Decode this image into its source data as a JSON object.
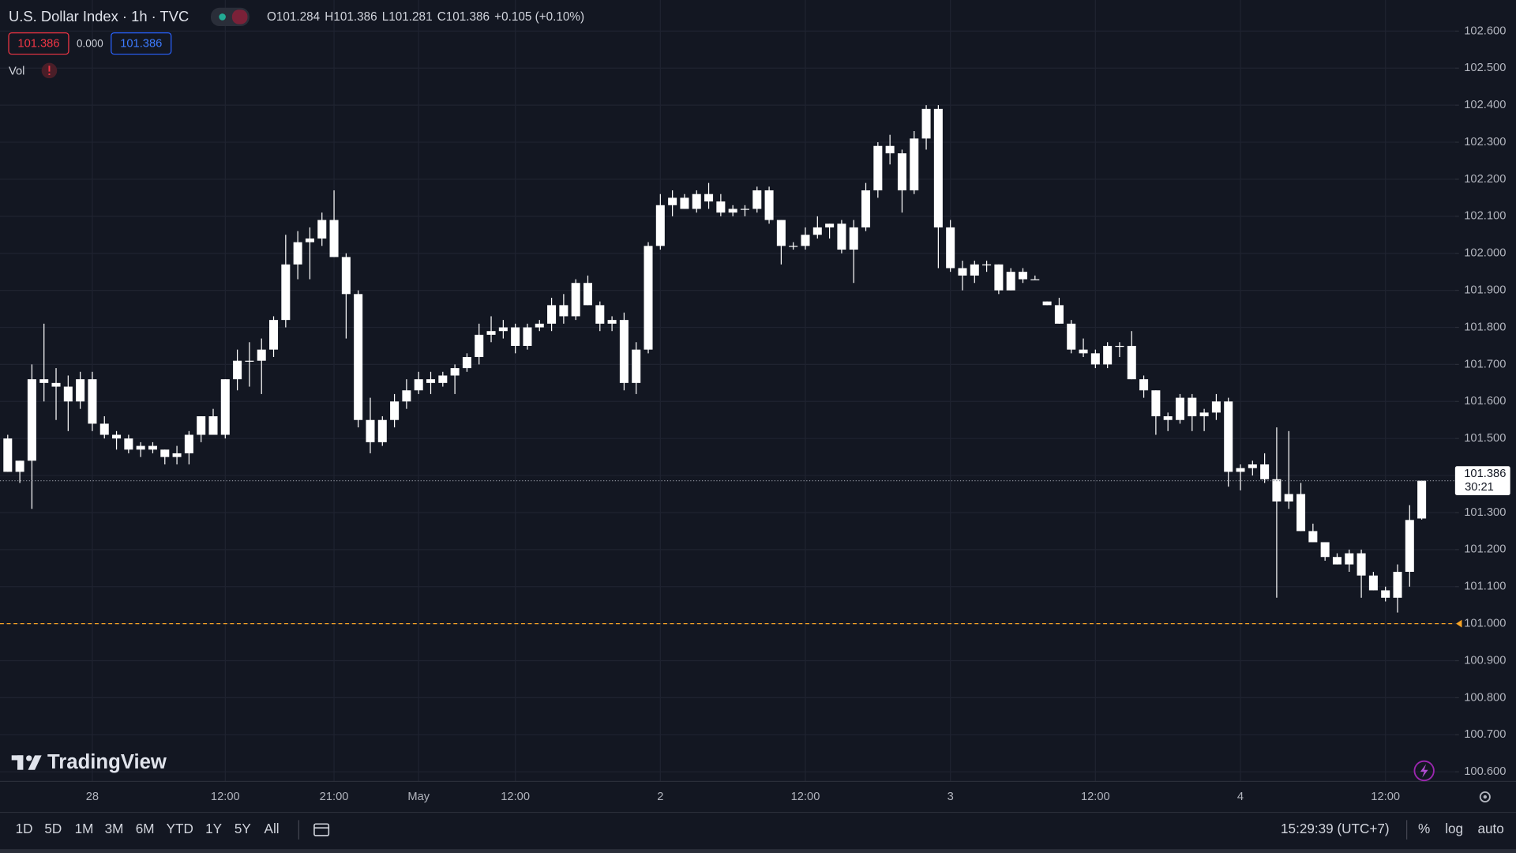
{
  "chart_data": {
    "type": "candlestick",
    "categories": [
      null,
      null,
      null,
      null,
      null,
      null,
      null,
      "28",
      null,
      null,
      null,
      null,
      null,
      null,
      null,
      null,
      null,
      null,
      "12:00",
      null,
      null,
      null,
      null,
      null,
      null,
      null,
      null,
      "21:00",
      null,
      null,
      null,
      null,
      null,
      null,
      "May",
      null,
      null,
      null,
      null,
      null,
      null,
      null,
      "12:00",
      null,
      null,
      null,
      null,
      null,
      null,
      null,
      null,
      null,
      null,
      null,
      "2",
      null,
      null,
      null,
      null,
      null,
      null,
      null,
      null,
      null,
      null,
      null,
      "12:00",
      null,
      null,
      null,
      null,
      null,
      null,
      null,
      null,
      null,
      null,
      null,
      "3",
      null,
      null,
      null,
      null,
      null,
      null,
      null,
      null,
      null,
      null,
      null,
      "12:00",
      null,
      null,
      null,
      null,
      null,
      null,
      null,
      null,
      null,
      null,
      null,
      "4",
      null,
      null,
      null,
      null,
      null,
      null,
      null,
      null,
      null,
      null,
      null,
      "12:00",
      null,
      null,
      null
    ],
    "open": [
      101.5,
      101.41,
      101.44,
      101.66,
      101.65,
      101.64,
      101.6,
      101.66,
      101.54,
      101.51,
      101.5,
      101.47,
      101.48,
      101.47,
      101.45,
      101.46,
      101.51,
      101.56,
      101.51,
      101.66,
      101.71,
      101.71,
      101.74,
      101.82,
      101.97,
      102.03,
      102.04,
      102.09,
      101.99,
      101.89,
      101.55,
      101.49,
      101.55,
      101.6,
      101.63,
      101.66,
      101.65,
      101.67,
      101.69,
      101.72,
      101.78,
      101.79,
      101.8,
      101.75,
      101.8,
      101.81,
      101.86,
      101.83,
      101.92,
      101.86,
      101.81,
      101.82,
      101.65,
      101.74,
      102.02,
      102.13,
      102.15,
      102.12,
      102.16,
      102.14,
      102.11,
      102.12,
      102.12,
      102.17,
      102.09,
      102.02,
      102.02,
      102.05,
      102.07,
      102.08,
      102.01,
      102.07,
      102.17,
      102.29,
      102.27,
      102.17,
      102.31,
      102.39,
      102.07,
      101.96,
      101.94,
      101.97,
      101.97,
      101.9,
      101.95,
      101.93,
      101.87,
      101.86,
      101.81,
      101.74,
      101.73,
      101.7,
      101.75,
      101.75,
      101.66,
      101.63,
      101.56,
      101.55,
      101.61,
      101.56,
      101.57,
      101.6,
      101.41,
      101.42,
      101.43,
      101.39,
      101.33,
      101.35,
      101.25,
      101.22,
      101.18,
      101.16,
      101.19,
      101.13,
      101.09,
      101.07,
      101.14,
      101.284
    ],
    "high": [
      101.51,
      101.44,
      101.7,
      101.81,
      101.69,
      101.67,
      101.68,
      101.68,
      101.56,
      101.52,
      101.51,
      101.49,
      101.49,
      101.47,
      101.48,
      101.52,
      101.56,
      101.58,
      101.66,
      101.74,
      101.76,
      101.77,
      101.83,
      102.05,
      102.06,
      102.07,
      102.11,
      102.17,
      102.0,
      101.9,
      101.61,
      101.56,
      101.62,
      101.66,
      101.68,
      101.68,
      101.68,
      101.7,
      101.73,
      101.81,
      101.83,
      101.82,
      101.81,
      101.81,
      101.82,
      101.88,
      101.89,
      101.93,
      101.94,
      101.87,
      101.83,
      101.84,
      101.76,
      102.03,
      102.16,
      102.17,
      102.16,
      102.17,
      102.19,
      102.16,
      102.13,
      102.13,
      102.18,
      102.18,
      102.09,
      102.03,
      102.07,
      102.1,
      102.08,
      102.09,
      102.09,
      102.19,
      102.3,
      102.32,
      102.28,
      102.33,
      102.4,
      102.4,
      102.09,
      101.98,
      101.98,
      101.98,
      101.97,
      101.96,
      101.96,
      101.94,
      101.87,
      101.88,
      101.82,
      101.77,
      101.74,
      101.76,
      101.76,
      101.79,
      101.67,
      101.63,
      101.57,
      101.62,
      101.62,
      101.58,
      101.62,
      101.61,
      101.43,
      101.44,
      101.46,
      101.53,
      101.52,
      101.38,
      101.27,
      101.22,
      101.19,
      101.2,
      101.2,
      101.14,
      101.1,
      101.16,
      101.32,
      101.386
    ],
    "low": [
      101.41,
      101.38,
      101.31,
      101.6,
      101.55,
      101.52,
      101.58,
      101.52,
      101.5,
      101.47,
      101.46,
      101.45,
      101.46,
      101.43,
      101.43,
      101.43,
      101.49,
      101.51,
      101.5,
      101.63,
      101.64,
      101.62,
      101.72,
      101.8,
      101.93,
      101.93,
      102.02,
      101.99,
      101.77,
      101.53,
      101.46,
      101.48,
      101.53,
      101.58,
      101.62,
      101.62,
      101.64,
      101.62,
      101.68,
      101.7,
      101.76,
      101.77,
      101.73,
      101.74,
      101.79,
      101.79,
      101.81,
      101.82,
      101.86,
      101.79,
      101.79,
      101.63,
      101.62,
      101.73,
      102.01,
      102.1,
      102.12,
      102.11,
      102.12,
      102.1,
      102.1,
      102.1,
      102.11,
      102.08,
      101.97,
      102.01,
      102.01,
      102.04,
      102.04,
      102.0,
      101.92,
      102.06,
      102.15,
      102.24,
      102.11,
      102.16,
      102.28,
      101.96,
      101.95,
      101.9,
      101.92,
      101.95,
      101.89,
      101.9,
      101.92,
      101.93,
      101.86,
      101.81,
      101.73,
      101.72,
      101.69,
      101.69,
      101.72,
      101.66,
      101.61,
      101.51,
      101.52,
      101.54,
      101.52,
      101.52,
      101.55,
      101.37,
      101.36,
      101.4,
      101.38,
      101.07,
      101.31,
      101.25,
      101.22,
      101.17,
      101.16,
      101.14,
      101.07,
      101.09,
      101.06,
      101.03,
      101.1,
      101.281
    ],
    "close": [
      101.41,
      101.44,
      101.66,
      101.65,
      101.64,
      101.6,
      101.66,
      101.54,
      101.51,
      101.5,
      101.47,
      101.48,
      101.47,
      101.45,
      101.46,
      101.51,
      101.56,
      101.51,
      101.66,
      101.71,
      101.71,
      101.74,
      101.82,
      101.97,
      102.03,
      102.04,
      102.09,
      101.99,
      101.89,
      101.55,
      101.49,
      101.55,
      101.6,
      101.63,
      101.66,
      101.65,
      101.67,
      101.69,
      101.72,
      101.78,
      101.79,
      101.8,
      101.75,
      101.8,
      101.81,
      101.86,
      101.83,
      101.92,
      101.86,
      101.81,
      101.82,
      101.65,
      101.74,
      102.02,
      102.13,
      102.15,
      102.12,
      102.16,
      102.14,
      102.11,
      102.12,
      102.12,
      102.17,
      102.09,
      102.02,
      102.02,
      102.05,
      102.07,
      102.08,
      102.01,
      102.07,
      102.17,
      102.29,
      102.27,
      102.17,
      102.31,
      102.39,
      102.07,
      101.96,
      101.94,
      101.97,
      101.97,
      101.9,
      101.95,
      101.93,
      101.93,
      101.86,
      101.81,
      101.74,
      101.73,
      101.7,
      101.75,
      101.75,
      101.66,
      101.63,
      101.56,
      101.55,
      101.61,
      101.56,
      101.57,
      101.6,
      101.41,
      101.42,
      101.43,
      101.39,
      101.33,
      101.35,
      101.25,
      101.22,
      101.18,
      101.16,
      101.19,
      101.13,
      101.09,
      101.07,
      101.14,
      101.28,
      101.386
    ],
    "color": "#ffffff",
    "ylim": [
      100.574,
      102.684
    ],
    "yticks": [
      {
        "value": 100.6,
        "label": "100.600"
      },
      {
        "value": 100.7,
        "label": "100.700"
      },
      {
        "value": 100.8,
        "label": "100.800"
      },
      {
        "value": 100.9,
        "label": "100.900"
      },
      {
        "value": 101.0,
        "label": "101.000"
      },
      {
        "value": 101.1,
        "label": "101.100"
      },
      {
        "value": 101.2,
        "label": "101.200"
      },
      {
        "value": 101.3,
        "label": "101.300"
      },
      {
        "value": 101.4,
        "label": "101.400"
      },
      {
        "value": 101.5,
        "label": "101.500"
      },
      {
        "value": 101.6,
        "label": "101.600"
      },
      {
        "value": 101.7,
        "label": "101.700"
      },
      {
        "value": 101.8,
        "label": "101.800"
      },
      {
        "value": 101.9,
        "label": "101.900"
      },
      {
        "value": 102.0,
        "label": "102.000"
      },
      {
        "value": 102.1,
        "label": "102.100"
      },
      {
        "value": 102.2,
        "label": "102.200"
      },
      {
        "value": 102.3,
        "label": "102.300"
      },
      {
        "value": 102.4,
        "label": "102.400"
      },
      {
        "value": 102.5,
        "label": "102.500"
      },
      {
        "value": 102.6,
        "label": "102.600"
      }
    ],
    "grid": true,
    "alert_line": 101.0,
    "alert_color": "#f7a325",
    "countdown": "30:21"
  },
  "header": {
    "title": "U.S. Dollar Index · 1h · TVC",
    "ohlc_keys": [
      "O",
      "H",
      "L",
      "C"
    ],
    "change": "+0.105 (+0.10%)",
    "spread": "0.000",
    "volume": "Vol",
    "logo": "TradingView"
  },
  "toolbar": {
    "ranges": [
      "1D",
      "5D",
      "1M",
      "3M",
      "6M",
      "YTD",
      "1Y",
      "5Y",
      "All"
    ],
    "clock": "15:29:39 (UTC+7)",
    "options": [
      "%",
      "log",
      "auto"
    ]
  }
}
